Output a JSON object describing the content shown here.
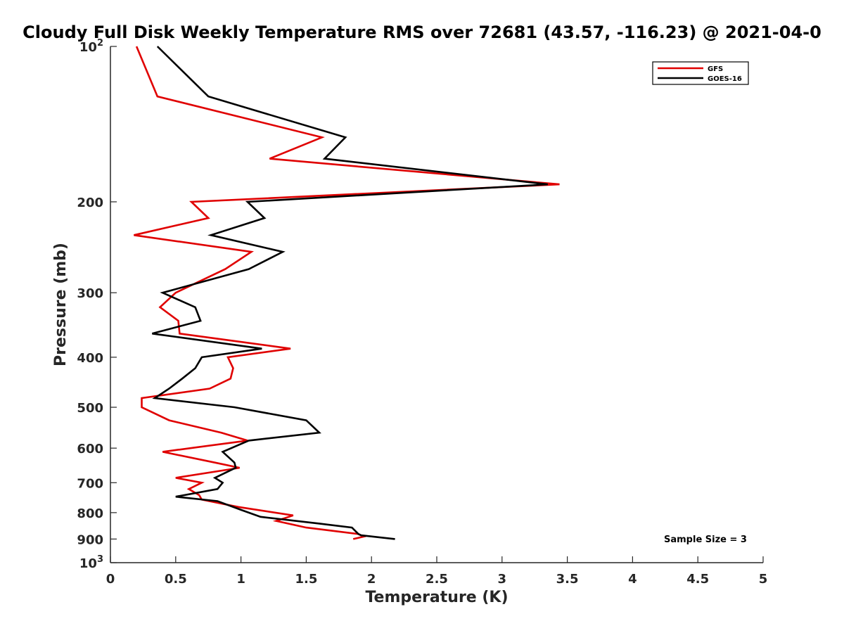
{
  "chart_data": {
    "type": "line",
    "title": "Cloudy Full Disk Weekly Temperature RMS over 72681 (43.57, -116.23) @ 2021-04-0",
    "xlabel": "Temperature (K)",
    "ylabel": "Pressure (mb)",
    "xlim": [
      0,
      5
    ],
    "ylim": [
      100,
      1000
    ],
    "y_scale": "log",
    "y_reversed": true,
    "grid": false,
    "legend_position": "top-right",
    "x_ticks": [
      "0",
      "0.5",
      "1",
      "1.5",
      "2",
      "2.5",
      "3",
      "3.5",
      "4",
      "4.5",
      "5"
    ],
    "y_ticks": [
      {
        "value": 100,
        "base": "10",
        "exp": "2"
      },
      {
        "value": 200,
        "label": "200"
      },
      {
        "value": 300,
        "label": "300"
      },
      {
        "value": 400,
        "label": "400"
      },
      {
        "value": 500,
        "label": "500"
      },
      {
        "value": 600,
        "label": "600"
      },
      {
        "value": 700,
        "label": "700"
      },
      {
        "value": 800,
        "label": "800"
      },
      {
        "value": 900,
        "label": "900"
      },
      {
        "value": 1000,
        "base": "10",
        "exp": "3"
      }
    ],
    "annotation": "Sample Size = 3",
    "series": [
      {
        "name": "GFS",
        "color": "#e00000",
        "points": [
          [
            0.2,
            100
          ],
          [
            0.36,
            125
          ],
          [
            1.62,
            150
          ],
          [
            1.22,
            165
          ],
          [
            3.44,
            185
          ],
          [
            0.62,
            200
          ],
          [
            0.75,
            215
          ],
          [
            0.18,
            232
          ],
          [
            1.08,
            250
          ],
          [
            0.88,
            270
          ],
          [
            0.5,
            300
          ],
          [
            0.38,
            320
          ],
          [
            0.52,
            340
          ],
          [
            0.53,
            360
          ],
          [
            1.38,
            385
          ],
          [
            0.9,
            400
          ],
          [
            0.94,
            420
          ],
          [
            0.92,
            440
          ],
          [
            0.76,
            460
          ],
          [
            0.24,
            480
          ],
          [
            0.24,
            500
          ],
          [
            0.45,
            530
          ],
          [
            0.85,
            560
          ],
          [
            1.05,
            580
          ],
          [
            0.4,
            610
          ],
          [
            0.8,
            640
          ],
          [
            0.99,
            655
          ],
          [
            0.5,
            685
          ],
          [
            0.7,
            700
          ],
          [
            0.6,
            720
          ],
          [
            0.68,
            740
          ],
          [
            0.7,
            755
          ],
          [
            0.98,
            780
          ],
          [
            1.4,
            810
          ],
          [
            1.27,
            830
          ],
          [
            1.5,
            855
          ],
          [
            1.9,
            880
          ],
          [
            1.94,
            890
          ],
          [
            1.86,
            900
          ]
        ]
      },
      {
        "name": "GOES-16",
        "color": "#000000",
        "points": [
          [
            0.36,
            100
          ],
          [
            0.75,
            125
          ],
          [
            1.8,
            150
          ],
          [
            1.64,
            165
          ],
          [
            3.35,
            185
          ],
          [
            1.05,
            200
          ],
          [
            1.18,
            215
          ],
          [
            0.77,
            232
          ],
          [
            1.32,
            250
          ],
          [
            1.06,
            270
          ],
          [
            0.4,
            300
          ],
          [
            0.65,
            320
          ],
          [
            0.69,
            340
          ],
          [
            0.32,
            360
          ],
          [
            1.16,
            385
          ],
          [
            0.7,
            400
          ],
          [
            0.65,
            420
          ],
          [
            0.55,
            440
          ],
          [
            0.45,
            460
          ],
          [
            0.34,
            480
          ],
          [
            0.95,
            500
          ],
          [
            1.5,
            530
          ],
          [
            1.6,
            560
          ],
          [
            1.06,
            580
          ],
          [
            0.86,
            610
          ],
          [
            0.95,
            640
          ],
          [
            0.96,
            655
          ],
          [
            0.8,
            685
          ],
          [
            0.86,
            700
          ],
          [
            0.82,
            720
          ],
          [
            0.5,
            745
          ],
          [
            0.82,
            760
          ],
          [
            1.0,
            790
          ],
          [
            1.15,
            815
          ],
          [
            1.6,
            840
          ],
          [
            1.85,
            855
          ],
          [
            1.9,
            880
          ],
          [
            1.92,
            885
          ],
          [
            2.18,
            900
          ]
        ]
      }
    ]
  }
}
